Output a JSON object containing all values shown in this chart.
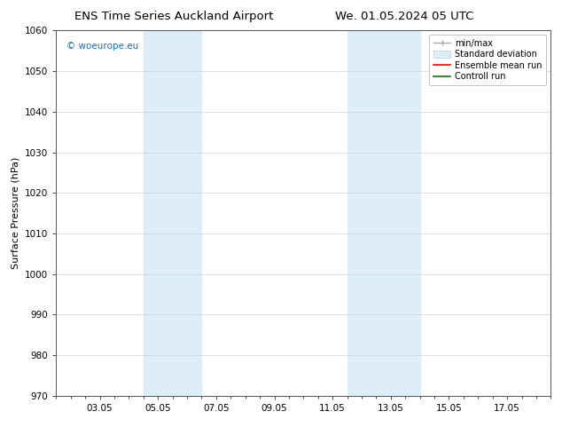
{
  "title_left": "ENS Time Series Auckland Airport",
  "title_right": "We. 01.05.2024 05 UTC",
  "ylabel": "Surface Pressure (hPa)",
  "ylim": [
    970,
    1060
  ],
  "yticks": [
    970,
    980,
    990,
    1000,
    1010,
    1020,
    1030,
    1040,
    1050,
    1060
  ],
  "xtick_labels": [
    "03.05",
    "05.05",
    "07.05",
    "09.05",
    "11.05",
    "13.05",
    "15.05",
    "17.05"
  ],
  "xtick_positions": [
    2,
    4,
    6,
    8,
    10,
    12,
    14,
    16
  ],
  "xlim": [
    0.5,
    17.5
  ],
  "shaded_bands": [
    {
      "x_start": 3.5,
      "x_end": 5.5
    },
    {
      "x_start": 10.5,
      "x_end": 13.0
    }
  ],
  "shaded_color": "#ddeef8",
  "background_color": "#ffffff",
  "watermark_text": "© woeurope.eu",
  "watermark_color": "#1a6fbb",
  "title_fontsize": 9.5,
  "tick_fontsize": 7.5,
  "label_fontsize": 8,
  "legend_fontsize": 7,
  "grid_color": "#d0d0d0",
  "spine_color": "#555555",
  "legend_bg": "#ffffff",
  "legend_edge": "#aaaaaa"
}
